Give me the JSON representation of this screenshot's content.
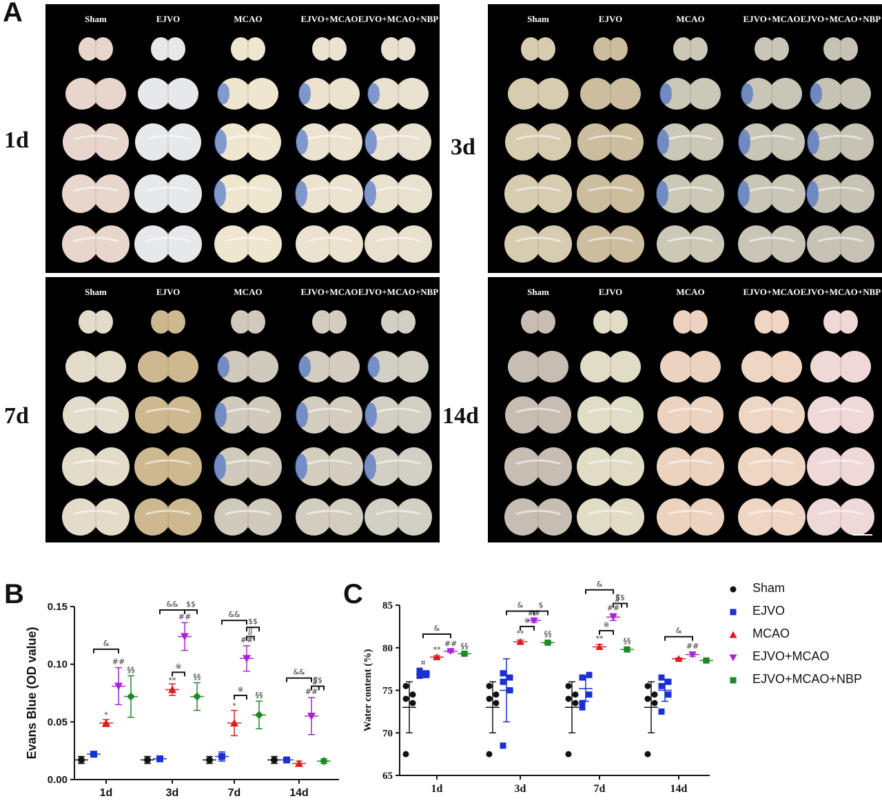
{
  "panels": {
    "A": "A",
    "B": "B",
    "C": "C"
  },
  "photo_panels": [
    {
      "time": "1d",
      "columns": [
        "Sham",
        "EJVO",
        "MCAO",
        "EJVO+MCAO",
        "EJVO+MCAO+NBP"
      ]
    },
    {
      "time": "3d",
      "columns": [
        "Sham",
        "EJVO",
        "MCAO",
        "EJVO+MCAO",
        "EJVO+MCAO+NBP"
      ]
    },
    {
      "time": "7d",
      "columns": [
        "Sham",
        "EJVO",
        "MCAO",
        "EJVO+MCAO",
        "EJVO+MCAO+NBP"
      ]
    },
    {
      "time": "14d",
      "columns": [
        "Sham",
        "EJVO",
        "MCAO",
        "EJVO+MCAO",
        "EJVO+MCAO+NBP"
      ]
    }
  ],
  "colors": {
    "Sham": "#111111",
    "EJVO": "#1a2fd6",
    "MCAO": "#e01b1b",
    "EJVO+MCAO": "#a822d8",
    "EJVO+MCAO+NBP": "#1d8a2a"
  },
  "chart_data": [
    {
      "type": "scatter",
      "panel": "B",
      "ylabel": "Evans Blue (OD value)",
      "categories": [
        "1d",
        "3d",
        "7d",
        "14d"
      ],
      "ylim": [
        0.0,
        0.15
      ],
      "yticks": [
        "0.00",
        "0.05",
        "0.10",
        "0.15"
      ],
      "series": [
        {
          "name": "Sham",
          "marker": "circle",
          "means": [
            0.017,
            0.017,
            0.017,
            0.017
          ],
          "sd": [
            0.003,
            0.003,
            0.003,
            0.003
          ]
        },
        {
          "name": "EJVO",
          "marker": "square",
          "means": [
            0.022,
            0.018,
            0.02,
            0.017
          ],
          "sd": [
            0.002,
            0.002,
            0.004,
            0.002
          ]
        },
        {
          "name": "MCAO",
          "marker": "triangle-up",
          "means": [
            0.049,
            0.078,
            0.049,
            0.014
          ],
          "sd": [
            0.003,
            0.005,
            0.011,
            0.002
          ]
        },
        {
          "name": "EJVO+MCAO",
          "marker": "triangle-down",
          "means": [
            0.081,
            0.124,
            0.105,
            0.055
          ],
          "sd": [
            0.016,
            0.012,
            0.011,
            0.016
          ]
        },
        {
          "name": "EJVO+MCAO+NBP",
          "marker": "diamond",
          "means": [
            0.072,
            0.072,
            0.056,
            0.016
          ],
          "sd": [
            0.018,
            0.012,
            0.012,
            0.002
          ]
        }
      ],
      "annotations": [
        {
          "text": "*",
          "cat": 0,
          "s": 2,
          "y": 0.054
        },
        {
          "text": "##",
          "cat": 0,
          "s": 3,
          "y": 0.1
        },
        {
          "text": "§§",
          "cat": 0,
          "s": 4,
          "y": 0.093
        },
        {
          "text": "**",
          "cat": 1,
          "s": 2,
          "y": 0.084
        },
        {
          "text": "##",
          "cat": 1,
          "s": 3,
          "y": 0.139
        },
        {
          "text": "§§",
          "cat": 1,
          "s": 4,
          "y": 0.087
        },
        {
          "text": "*",
          "cat": 2,
          "s": 2,
          "y": 0.062
        },
        {
          "text": "##",
          "cat": 2,
          "s": 3,
          "y": 0.119
        },
        {
          "text": "§§",
          "cat": 2,
          "s": 4,
          "y": 0.071
        },
        {
          "text": "##",
          "cat": 3,
          "s": 3,
          "y": 0.074
        }
      ],
      "brackets": [
        {
          "cat": 0,
          "from": 1,
          "to": 3,
          "y": 0.113,
          "label": "&"
        },
        {
          "cat": 1,
          "from": 2,
          "to": 3,
          "y": 0.093,
          "label": "※"
        },
        {
          "cat": 1,
          "from": 1,
          "to": 3,
          "y": 0.147,
          "label": "&&"
        },
        {
          "cat": 1,
          "from": 3,
          "to": 4,
          "y": 0.147,
          "label": "$$"
        },
        {
          "cat": 2,
          "from": 2,
          "to": 3,
          "y": 0.073,
          "label": "※"
        },
        {
          "cat": 2,
          "from": 1,
          "to": 3,
          "y": 0.138,
          "label": "&&"
        },
        {
          "cat": 2,
          "from": 3,
          "to": 4,
          "y": 0.132,
          "label": "$$"
        },
        {
          "cat": 2,
          "from": 3,
          "to": 3.6,
          "y": 0.124,
          "label": "∬"
        },
        {
          "cat": 3,
          "from": 1,
          "to": 3,
          "y": 0.088,
          "label": "&&"
        },
        {
          "cat": 3,
          "from": 3,
          "to": 4,
          "y": 0.081,
          "label": "$$"
        },
        {
          "cat": 3,
          "from": 3,
          "to": 3.6,
          "y": 0.081,
          "label": "∬"
        }
      ]
    },
    {
      "type": "scatter",
      "panel": "C",
      "ylabel": "Water content (%)",
      "categories": [
        "1d",
        "3d",
        "7d",
        "14d"
      ],
      "ylim": [
        65,
        85
      ],
      "yticks": [
        "65",
        "70",
        "75",
        "80",
        "85"
      ],
      "series": [
        {
          "name": "Sham",
          "marker": "circle",
          "means": [
            73.0,
            73.0,
            73.0,
            73.0
          ],
          "sd": [
            3.0,
            3.0,
            3.0,
            3.0
          ],
          "points": [
            [
              67.5,
              73.5,
              74.0,
              74.5,
              75.5
            ],
            [
              67.5,
              73.5,
              74.0,
              74.5,
              75.5
            ],
            [
              67.5,
              73.5,
              74.0,
              74.5,
              75.5
            ],
            [
              67.5,
              73.5,
              74.0,
              74.5,
              75.5
            ]
          ]
        },
        {
          "name": "EJVO",
          "marker": "square",
          "means": [
            76.9,
            75.0,
            75.2,
            75.0
          ],
          "sd": [
            0.4,
            3.7,
            1.5,
            1.3
          ],
          "points": [
            [
              76.7,
              77.0,
              77.3,
              76.8,
              77.1
            ],
            [
              68.5,
              75.0,
              76.0,
              76.5,
              77.0
            ],
            [
              73.0,
              74.5,
              76.5,
              76.8,
              73.5
            ],
            [
              72.5,
              74.5,
              75.5,
              76.0,
              76.5
            ]
          ]
        },
        {
          "name": "MCAO",
          "marker": "triangle-up",
          "means": [
            78.9,
            80.7,
            80.1,
            78.7
          ],
          "sd": [
            0.15,
            0.2,
            0.3,
            0.1
          ],
          "points": [
            [
              78.9
            ],
            [
              80.7
            ],
            [
              80.1
            ],
            [
              78.7
            ]
          ]
        },
        {
          "name": "EJVO+MCAO",
          "marker": "triangle-down",
          "means": [
            79.6,
            83.2,
            83.6,
            79.2
          ],
          "sd": [
            0.15,
            0.2,
            0.4,
            0.2
          ],
          "points": [
            [
              79.6
            ],
            [
              83.2
            ],
            [
              83.6
            ],
            [
              79.2
            ]
          ]
        },
        {
          "name": "EJVO+MCAO+NBP",
          "marker": "square",
          "means": [
            79.3,
            80.6,
            79.8,
            78.5
          ],
          "sd": [
            0.15,
            0.15,
            0.2,
            0.1
          ],
          "points": [
            [
              79.3
            ],
            [
              80.6
            ],
            [
              79.8
            ],
            [
              78.5
            ]
          ]
        }
      ],
      "annotations": [
        {
          "text": "¤",
          "cat": 0,
          "s": 1,
          "y": 78.0
        },
        {
          "text": "**",
          "cat": 0,
          "s": 2,
          "y": 79.5
        },
        {
          "text": "##",
          "cat": 0,
          "s": 3,
          "y": 80.2
        },
        {
          "text": "§§",
          "cat": 0,
          "s": 4,
          "y": 79.9
        },
        {
          "text": "**",
          "cat": 1,
          "s": 2,
          "y": 81.4
        },
        {
          "text": "##",
          "cat": 1,
          "s": 3,
          "y": 83.8
        },
        {
          "text": "§§",
          "cat": 1,
          "s": 4,
          "y": 81.3
        },
        {
          "text": "**",
          "cat": 2,
          "s": 2,
          "y": 80.8
        },
        {
          "text": "##",
          "cat": 2,
          "s": 3,
          "y": 84.4
        },
        {
          "text": "§§",
          "cat": 2,
          "s": 4,
          "y": 80.5
        },
        {
          "text": "##",
          "cat": 3,
          "s": 3,
          "y": 79.9
        }
      ],
      "brackets": [
        {
          "cat": 0,
          "from": 1,
          "to": 3,
          "y": 81.6,
          "label": "&"
        },
        {
          "cat": 1,
          "from": 2,
          "to": 3,
          "y": 82.5,
          "label": "※"
        },
        {
          "cat": 1,
          "from": 1,
          "to": 3,
          "y": 84.3,
          "label": "&"
        },
        {
          "cat": 1,
          "from": 3,
          "to": 4,
          "y": 84.3,
          "label": "$"
        },
        {
          "cat": 2,
          "from": 2,
          "to": 3,
          "y": 82.0,
          "label": "※"
        },
        {
          "cat": 2,
          "from": 1,
          "to": 3,
          "y": 86.8,
          "label": "&"
        },
        {
          "cat": 2,
          "from": 3,
          "to": 4,
          "y": 85.2,
          "label": "$$"
        },
        {
          "cat": 2,
          "from": 3,
          "to": 3.6,
          "y": 85.2,
          "label": "∬"
        },
        {
          "cat": 3,
          "from": 1,
          "to": 3,
          "y": 81.3,
          "label": "&"
        }
      ]
    }
  ],
  "legend": [
    "Sham",
    "EJVO",
    "MCAO",
    "EJVO+MCAO",
    "EJVO+MCAO+NBP"
  ]
}
